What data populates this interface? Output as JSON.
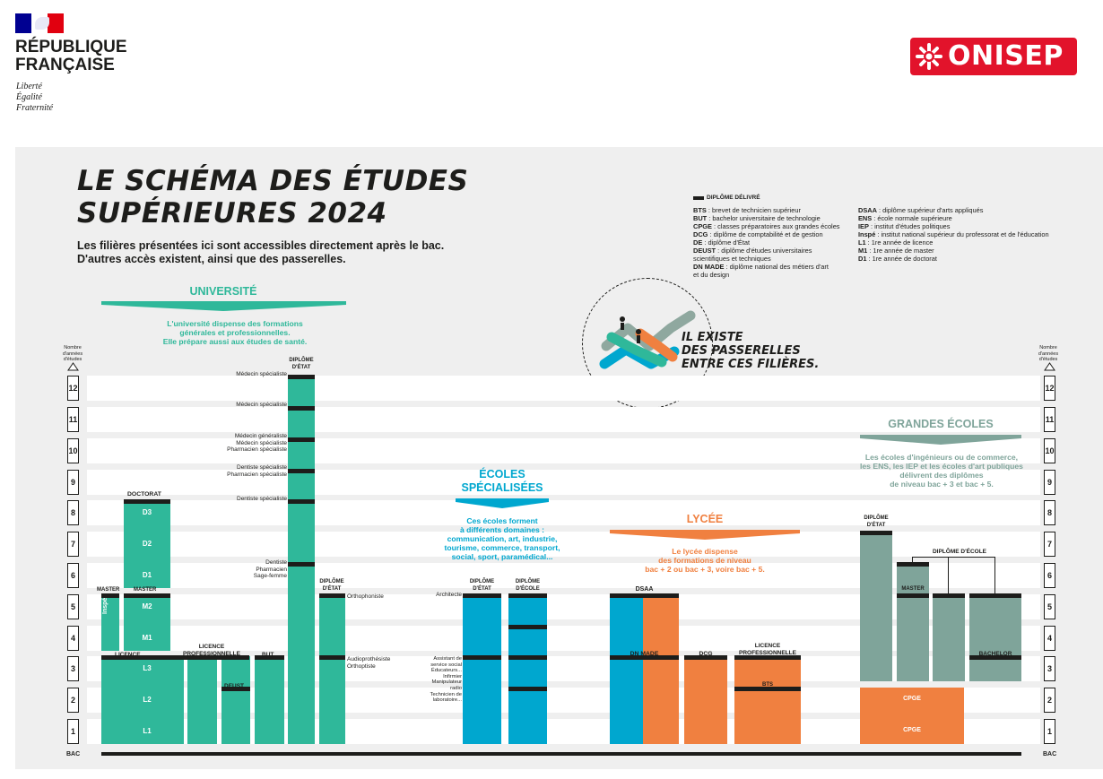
{
  "header": {
    "rf_line1": "RÉPUBLIQUE",
    "rf_line2": "FRANÇAISE",
    "devise": [
      "Liberté",
      "Égalité",
      "Fraternité"
    ],
    "onisep": "ONISEP"
  },
  "title": {
    "line1": "LE SCHÉMA DES ÉTUDES",
    "line2": "SUPÉRIEURES 2024",
    "sub1": "Les filières présentées ici sont accessibles directement après le bac.",
    "sub2": "D'autres accès existent, ainsi que des passerelles."
  },
  "legend": {
    "diplome": "DIPLÔME DÉLIVRÉ",
    "col1": [
      {
        "abbr": "BTS",
        "text": " : brevet de technicien supérieur"
      },
      {
        "abbr": "BUT",
        "text": " : bachelor universitaire de technologie"
      },
      {
        "abbr": "CPGE",
        "text": " : classes préparatoires aux grandes écoles"
      },
      {
        "abbr": "DCG",
        "text": " : diplôme de comptabilité et de gestion"
      },
      {
        "abbr": "DE",
        "text": " : diplôme d'État"
      },
      {
        "abbr": "DEUST",
        "text": " : diplôme d'études universitaires"
      },
      {
        "abbr": "",
        "text": "scientifiques et techniques"
      },
      {
        "abbr": "DN MADE",
        "text": " : diplôme national des métiers d'art"
      },
      {
        "abbr": "",
        "text": "et du design"
      }
    ],
    "col2": [
      {
        "abbr": "DSAA",
        "text": " : diplôme supérieur d'arts appliqués"
      },
      {
        "abbr": "ENS",
        "text": " : école normale supérieure"
      },
      {
        "abbr": "IEP",
        "text": " : institut d'études politiques"
      },
      {
        "abbr": "Inspé",
        "text": " : institut national supérieur du professorat et de l'éducation"
      },
      {
        "abbr": "L1",
        "text": " : 1re année de licence"
      },
      {
        "abbr": "M1",
        "text": " : 1re année de master"
      },
      {
        "abbr": "D1",
        "text": " : 1re année de doctorat"
      }
    ]
  },
  "passerelles": [
    "IL EXISTE",
    "DES PASSERELLES",
    "ENTRE CES FILIÈRES."
  ],
  "axis": {
    "header": [
      "Nombre",
      "d'années",
      "d'études"
    ],
    "years": [
      "12",
      "11",
      "10",
      "9",
      "8",
      "7",
      "6",
      "5",
      "4",
      "3",
      "2",
      "1"
    ],
    "bac": "BAC"
  },
  "universite": {
    "title": "UNIVERSITÉ",
    "desc": [
      "L'université dispense des formations",
      "générales et professionnelles.",
      "Elle prépare aussi aux études de santé."
    ],
    "doctorat": "DOCTORAT",
    "d3": "D3",
    "d2": "D2",
    "d1": "D1",
    "master": "MASTER",
    "master2": "MASTER",
    "m2": "M2",
    "m1": "M1",
    "inspe": "Inspé",
    "licence": "LICENCE",
    "l3": "L3",
    "l2": "L2",
    "l1": "L1",
    "licence_pro": [
      "LICENCE",
      "PROFESSIONNELLE"
    ],
    "deust": "DEUST",
    "but": "BUT",
    "diplome_etat": [
      "DIPLÔME",
      "D'ÉTAT"
    ],
    "diplome_etat2": [
      "DIPLÔME",
      "D'ÉTAT"
    ],
    "sante": {
      "medecin_spe1": "Médecin spécialiste",
      "medecin_spe2": "Médecin spécialiste",
      "medecin_gen": "Médecin généraliste",
      "medecin_spe3": "Médecin spécialiste",
      "pharma_spe1": "Pharmacien spécialiste",
      "dentiste_spe1": "Dentiste spécialiste",
      "pharma_spe2": "Pharmacien spécialiste",
      "dentiste_spe2": "Dentiste spécialiste",
      "dentiste": "Dentiste",
      "pharmacien": "Pharmacien",
      "sage_femme": "Sage-femme",
      "orthophoniste": "Orthophoniste",
      "audioprothesiste": "Audioprothésiste",
      "orthoptiste": "Orthoptiste"
    }
  },
  "ecoles": {
    "title1": "ÉCOLES",
    "title2": "SPÉCIALISÉES",
    "desc": [
      "Ces écoles forment",
      "à différents domaines :",
      "communication, art, industrie,",
      "tourisme, commerce, transport,",
      "social, sport, paramédical..."
    ],
    "diplome_etat": [
      "DIPLÔME",
      "D'ÉTAT"
    ],
    "diplome_ecole": [
      "DIPLÔME",
      "D'ÉCOLE"
    ],
    "architecte": "Architecte",
    "metiers": [
      "Assistant de",
      "service social",
      "Éducateurs...",
      "Infirmier",
      "Manipulateur",
      "radio",
      "Technicien de",
      "laboratoire..."
    ]
  },
  "lycee": {
    "title": "LYCÉE",
    "desc": [
      "Le lycée dispense",
      "des formations de niveau",
      "bac + 2 ou bac + 3, voire bac + 5."
    ],
    "dsaa": "DSAA",
    "dnmade": "DN MADE",
    "dcg": "DCG",
    "licence_pro": [
      "LICENCE",
      "PROFESSIONNELLE"
    ],
    "bts": "BTS"
  },
  "grandes_ecoles": {
    "title": "GRANDES ÉCOLES",
    "desc": [
      "Les écoles d'ingénieurs ou de commerce,",
      "les ENS, les IEP et les écoles d'art publiques",
      "délivrent des diplômes",
      "de niveau bac + 3 et bac + 5."
    ],
    "diplome_etat": [
      "DIPLÔME",
      "D'ÉTAT"
    ],
    "diplome_ecole": "DIPLÔME D'ÉCOLE",
    "master": "MASTER",
    "bachelor": "BACHELOR",
    "cpge1": "CPGE",
    "cpge2": "CPGE"
  },
  "colors": {
    "universite": "#2fb89a",
    "ecoles": "#00a7cf",
    "lycee": "#f08040",
    "grandes_ecoles": "#7fa49a",
    "dark": "#1d1d1b",
    "onisep_red": "#e2132b"
  }
}
